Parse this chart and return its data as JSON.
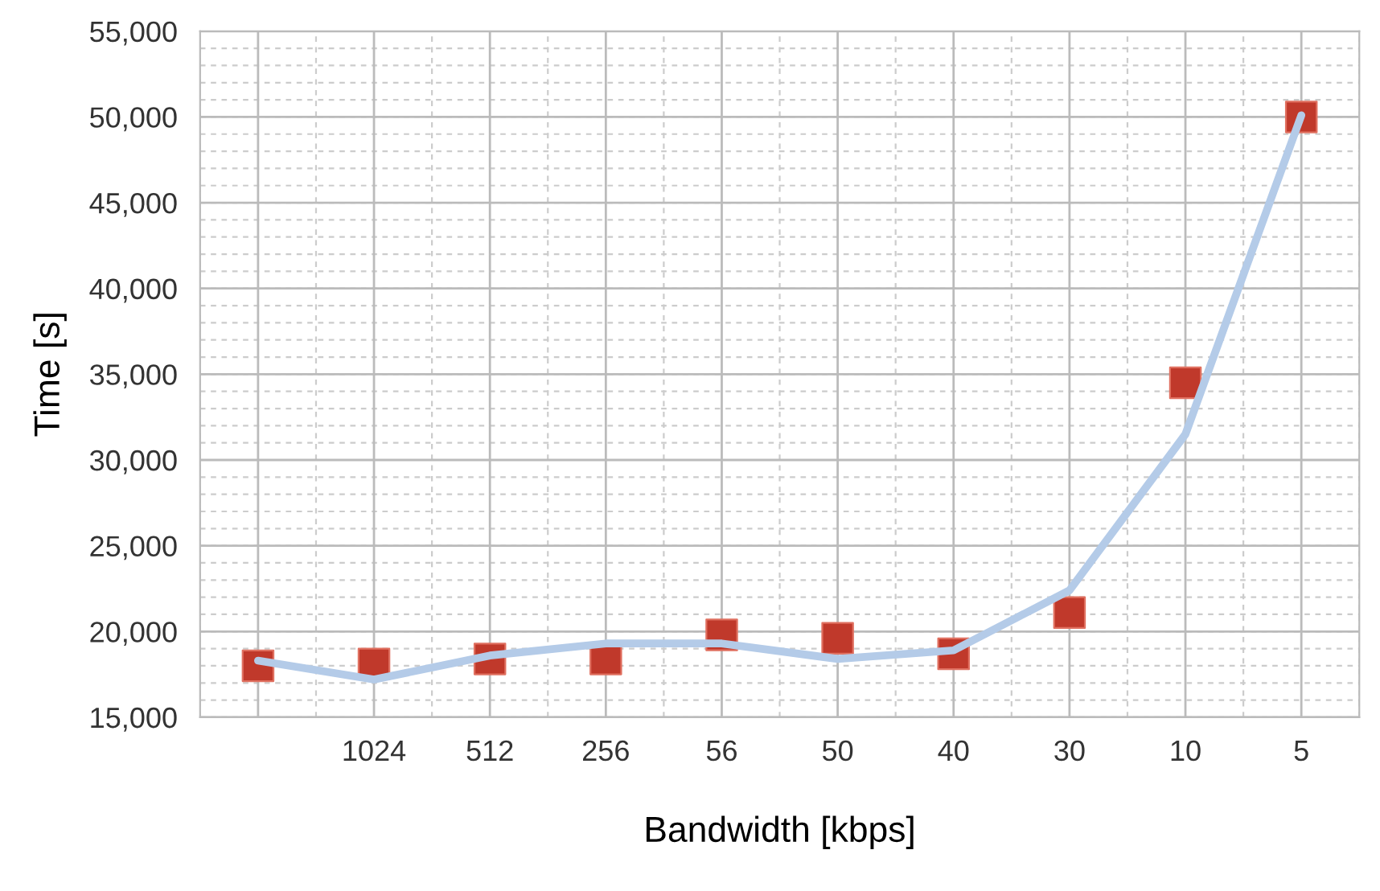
{
  "chart_data": {
    "type": "scatter",
    "xlabel": "Bandwidth [kbps]",
    "ylabel": "Time [s]",
    "categories": [
      null,
      "1024",
      "512",
      "256",
      "56",
      "50",
      "40",
      "30",
      "10",
      "5"
    ],
    "series": [
      {
        "type": "line",
        "color": "#b4cbe8",
        "marker": "none",
        "values": [
          18300,
          17200,
          18600,
          19300,
          19300,
          18400,
          18900,
          22400,
          31500,
          50100
        ]
      },
      {
        "color": "#c0392b",
        "marker": "square",
        "values": [
          18000,
          18100,
          18400,
          18400,
          19800,
          19600,
          18700,
          21100,
          34500,
          50000
        ]
      }
    ],
    "ylim": [
      15000,
      55000
    ],
    "yticks": [
      {
        "value": 15000,
        "label": "15,000"
      },
      {
        "value": 20000,
        "label": "20,000"
      },
      {
        "value": 25000,
        "label": "25,000"
      },
      {
        "value": 30000,
        "label": "30,000"
      },
      {
        "value": 35000,
        "label": "35,000"
      },
      {
        "value": 40000,
        "label": "40,000"
      },
      {
        "value": 45000,
        "label": "45,000"
      },
      {
        "value": 50000,
        "label": "50,000"
      },
      {
        "value": 55000,
        "label": "55,000"
      }
    ],
    "grid": true
  }
}
